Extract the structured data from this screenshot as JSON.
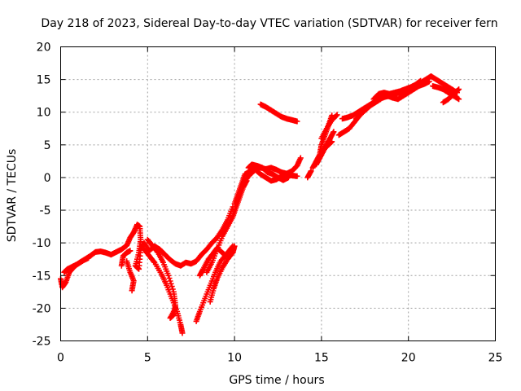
{
  "chart_data": {
    "type": "scatter",
    "title": "Day 218 of 2023, Sidereal Day-to-day VTEC variation (SDTVAR) for receiver fern",
    "xlabel": "GPS time / hours",
    "ylabel": "SDTVAR / TECUs",
    "xlim": [
      0,
      25
    ],
    "ylim": [
      -25,
      20
    ],
    "xticks": [
      "0",
      "5",
      "10",
      "15",
      "20",
      "25"
    ],
    "yticks": [
      "20",
      "15",
      "10",
      "5",
      "0",
      "-5",
      "-10",
      "-15",
      "-20",
      "-25"
    ],
    "grid": true,
    "marker": "+",
    "color": "#ff0000",
    "series": [
      {
        "segments": [
          [
            [
              0.0,
              -15.5
            ],
            [
              0.1,
              -16.8
            ],
            [
              0.3,
              -16.0
            ],
            [
              0.5,
              -14.5
            ],
            [
              0.8,
              -13.6
            ],
            [
              1.1,
              -13.0
            ],
            [
              1.4,
              -12.5
            ],
            [
              1.7,
              -12.0
            ],
            [
              2.0,
              -11.4
            ],
            [
              2.3,
              -11.3
            ],
            [
              2.6,
              -11.5
            ],
            [
              2.9,
              -11.8
            ],
            [
              3.2,
              -11.4
            ],
            [
              3.5,
              -11.0
            ],
            [
              3.8,
              -10.4
            ],
            [
              4.0,
              -9.2
            ],
            [
              4.2,
              -8.4
            ],
            [
              4.4,
              -7.2
            ],
            [
              4.55,
              -7.5
            ],
            [
              4.6,
              -9.5
            ],
            [
              4.5,
              -11.5
            ],
            [
              4.3,
              -13.5
            ],
            [
              4.5,
              -14.0
            ],
            [
              4.6,
              -11.0
            ],
            [
              4.8,
              -10.0
            ],
            [
              5.1,
              -11.2
            ],
            [
              5.4,
              -10.5
            ],
            [
              5.7,
              -11.0
            ],
            [
              6.0,
              -11.8
            ],
            [
              6.3,
              -12.6
            ],
            [
              6.6,
              -13.2
            ],
            [
              6.9,
              -13.5
            ],
            [
              7.2,
              -13.0
            ],
            [
              7.5,
              -13.2
            ],
            [
              7.8,
              -12.8
            ],
            [
              8.1,
              -11.8
            ],
            [
              8.4,
              -11.0
            ],
            [
              8.7,
              -10.0
            ],
            [
              9.0,
              -9.2
            ],
            [
              9.3,
              -8.0
            ],
            [
              9.6,
              -6.5
            ],
            [
              9.9,
              -4.5
            ]
          ],
          [
            [
              0.2,
              -14.5
            ],
            [
              0.4,
              -14.0
            ],
            [
              0.7,
              -13.6
            ],
            [
              1.0,
              -13.2
            ],
            [
              1.3,
              -12.7
            ],
            [
              1.6,
              -12.3
            ]
          ],
          [
            [
              3.8,
              -12.8
            ],
            [
              4.0,
              -14.5
            ],
            [
              4.2,
              -15.8
            ],
            [
              4.1,
              -17.3
            ]
          ],
          [
            [
              3.5,
              -13.5
            ],
            [
              3.6,
              -12.0
            ],
            [
              3.8,
              -11.5
            ],
            [
              4.0,
              -11.2
            ]
          ],
          [
            [
              4.8,
              -11.0
            ],
            [
              5.1,
              -12.0
            ],
            [
              5.4,
              -13.0
            ],
            [
              5.8,
              -14.8
            ],
            [
              6.1,
              -16.5
            ],
            [
              6.4,
              -18.5
            ],
            [
              6.7,
              -20.5
            ],
            [
              6.9,
              -22.5
            ],
            [
              7.0,
              -23.8
            ]
          ],
          [
            [
              5.0,
              -9.5
            ],
            [
              5.3,
              -10.5
            ],
            [
              5.6,
              -11.5
            ],
            [
              5.9,
              -13.0
            ],
            [
              6.2,
              -15.0
            ],
            [
              6.5,
              -17.5
            ],
            [
              6.6,
              -19.5
            ],
            [
              6.5,
              -21.0
            ],
            [
              6.3,
              -21.5
            ],
            [
              6.6,
              -20.0
            ]
          ],
          [
            [
              8.0,
              -15.0
            ],
            [
              8.2,
              -14.0
            ],
            [
              8.5,
              -12.5
            ],
            [
              8.8,
              -11.5
            ],
            [
              9.0,
              -10.8
            ],
            [
              9.3,
              -11.5
            ],
            [
              9.5,
              -12.0
            ]
          ],
          [
            [
              7.8,
              -22.0
            ],
            [
              8.0,
              -20.5
            ],
            [
              8.3,
              -18.5
            ],
            [
              8.6,
              -16.5
            ],
            [
              8.9,
              -14.5
            ],
            [
              9.2,
              -12.8
            ],
            [
              9.6,
              -11.5
            ],
            [
              9.9,
              -10.5
            ]
          ],
          [
            [
              8.6,
              -19.0
            ],
            [
              8.8,
              -17.0
            ],
            [
              9.0,
              -15.5
            ],
            [
              9.3,
              -13.8
            ],
            [
              9.6,
              -12.5
            ],
            [
              9.9,
              -11.5
            ],
            [
              10.0,
              -10.5
            ]
          ],
          [
            [
              8.4,
              -14.5
            ],
            [
              8.7,
              -13.0
            ],
            [
              9.0,
              -11.0
            ],
            [
              9.3,
              -9.0
            ],
            [
              9.6,
              -7.5
            ],
            [
              9.9,
              -6.0
            ],
            [
              10.1,
              -4.5
            ],
            [
              10.3,
              -3.0
            ],
            [
              10.5,
              -1.5
            ],
            [
              10.7,
              -0.5
            ]
          ],
          [
            [
              10.0,
              -4.0
            ],
            [
              10.2,
              -2.5
            ],
            [
              10.4,
              -1.0
            ],
            [
              10.6,
              0.5
            ],
            [
              10.9,
              1.0
            ],
            [
              11.2,
              1.6
            ],
            [
              11.5,
              1.5
            ],
            [
              11.8,
              1.3
            ],
            [
              12.1,
              1.5
            ],
            [
              12.4,
              1.2
            ],
            [
              12.7,
              0.8
            ],
            [
              13.0,
              0.6
            ],
            [
              13.3,
              1.0
            ],
            [
              13.6,
              1.8
            ],
            [
              13.8,
              3.0
            ]
          ],
          [
            [
              10.6,
              -0.5
            ],
            [
              10.9,
              0.5
            ],
            [
              11.2,
              1.2
            ],
            [
              11.5,
              0.5
            ],
            [
              11.8,
              0.0
            ],
            [
              12.1,
              -0.5
            ],
            [
              12.4,
              -0.3
            ],
            [
              12.7,
              0.2
            ],
            [
              13.0,
              0.5
            ],
            [
              13.3,
              0.3
            ],
            [
              13.6,
              0.2
            ]
          ],
          [
            [
              10.8,
              1.5
            ],
            [
              11.0,
              2.0
            ],
            [
              11.3,
              1.8
            ],
            [
              11.6,
              1.5
            ],
            [
              11.9,
              0.8
            ],
            [
              12.2,
              0.5
            ],
            [
              12.5,
              0.0
            ],
            [
              12.8,
              -0.4
            ],
            [
              13.1,
              0.0
            ]
          ],
          [
            [
              11.5,
              11.2
            ],
            [
              11.8,
              10.8
            ],
            [
              12.1,
              10.3
            ],
            [
              12.4,
              9.8
            ],
            [
              12.7,
              9.3
            ],
            [
              13.0,
              9.0
            ],
            [
              13.3,
              8.8
            ],
            [
              13.6,
              8.6
            ]
          ],
          [
            [
              14.2,
              0.0
            ],
            [
              14.4,
              1.0
            ]
          ],
          [
            [
              14.5,
              1.5
            ],
            [
              14.7,
              2.5
            ],
            [
              14.9,
              3.5
            ],
            [
              15.0,
              5.0
            ],
            [
              15.2,
              6.5
            ],
            [
              15.4,
              8.0
            ],
            [
              15.6,
              9.5
            ]
          ],
          [
            [
              14.7,
              2.0
            ],
            [
              14.9,
              3.0
            ],
            [
              15.1,
              4.0
            ],
            [
              15.3,
              5.0
            ],
            [
              15.5,
              6.0
            ],
            [
              15.7,
              7.0
            ]
          ],
          [
            [
              15.0,
              6.0
            ],
            [
              15.3,
              7.5
            ],
            [
              15.6,
              8.8
            ],
            [
              15.9,
              9.6
            ]
          ],
          [
            [
              15.0,
              4.0
            ],
            [
              15.2,
              4.5
            ],
            [
              15.4,
              5.0
            ],
            [
              15.6,
              5.5
            ]
          ],
          [
            [
              16.0,
              6.5
            ],
            [
              16.3,
              7.0
            ],
            [
              16.6,
              7.5
            ],
            [
              16.9,
              8.5
            ],
            [
              17.2,
              9.5
            ],
            [
              17.5,
              10.5
            ],
            [
              17.8,
              11.0
            ],
            [
              18.1,
              11.5
            ],
            [
              18.4,
              12.0
            ]
          ],
          [
            [
              16.2,
              9.0
            ],
            [
              16.5,
              9.2
            ],
            [
              16.8,
              9.5
            ],
            [
              17.1,
              10.0
            ],
            [
              17.4,
              10.5
            ],
            [
              17.7,
              11.0
            ],
            [
              18.0,
              11.5
            ],
            [
              18.3,
              12.0
            ],
            [
              18.6,
              12.3
            ],
            [
              18.9,
              12.5
            ],
            [
              19.2,
              12.8
            ],
            [
              19.5,
              13.0
            ],
            [
              19.8,
              13.3
            ],
            [
              20.1,
              13.7
            ],
            [
              20.4,
              14.0
            ],
            [
              20.7,
              14.5
            ],
            [
              21.0,
              15.0
            ],
            [
              21.3,
              15.5
            ]
          ],
          [
            [
              17.0,
              9.0
            ],
            [
              17.3,
              9.8
            ],
            [
              17.6,
              10.5
            ],
            [
              17.9,
              11.2
            ],
            [
              18.2,
              11.8
            ],
            [
              18.5,
              12.2
            ],
            [
              18.8,
              12.5
            ],
            [
              19.1,
              12.2
            ],
            [
              19.4,
              12.0
            ],
            [
              19.7,
              12.5
            ],
            [
              20.0,
              13.0
            ],
            [
              20.3,
              13.5
            ],
            [
              20.6,
              14.0
            ],
            [
              20.9,
              14.3
            ],
            [
              21.2,
              14.7
            ]
          ],
          [
            [
              18.0,
              12.0
            ],
            [
              18.3,
              12.8
            ],
            [
              18.6,
              13.0
            ],
            [
              18.9,
              12.8
            ],
            [
              19.2,
              13.0
            ],
            [
              19.5,
              13.2
            ],
            [
              19.8,
              13.5
            ],
            [
              20.1,
              13.8
            ],
            [
              20.4,
              14.2
            ],
            [
              20.7,
              14.8
            ]
          ],
          [
            [
              21.3,
              15.5
            ],
            [
              21.6,
              15.0
            ],
            [
              21.9,
              14.5
            ],
            [
              22.2,
              14.0
            ],
            [
              22.5,
              13.5
            ],
            [
              22.8,
              13.0
            ]
          ],
          [
            [
              21.4,
              14.0
            ],
            [
              21.7,
              13.8
            ],
            [
              22.0,
              13.5
            ],
            [
              22.3,
              13.0
            ],
            [
              22.6,
              12.5
            ],
            [
              22.9,
              12.0
            ]
          ],
          [
            [
              22.0,
              11.5
            ],
            [
              22.3,
              12.0
            ],
            [
              22.6,
              12.8
            ],
            [
              22.9,
              13.5
            ]
          ]
        ]
      }
    ]
  }
}
